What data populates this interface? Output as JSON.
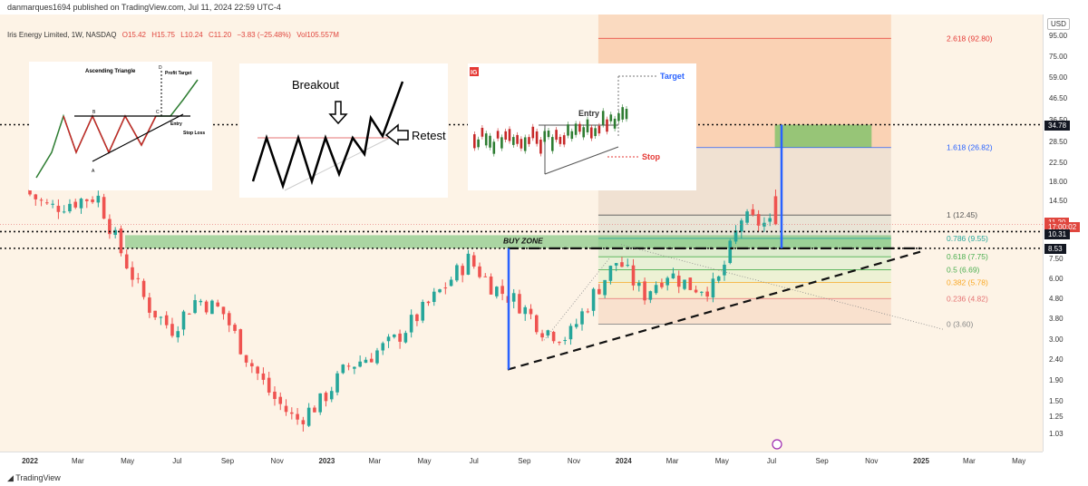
{
  "header": {
    "published": "danmarques1694 published on TradingView.com, Jul 11, 2024 22:59 UTC-4",
    "symbol": "Iris Energy Limited, 1W, NASDAQ",
    "open": "O15.42",
    "high": "H15.75",
    "low": "L10.24",
    "close": "C11.20",
    "change": "−3.83 (−25.48%)",
    "volume": "Vol105.557M"
  },
  "footer": {
    "brand": "TradingView"
  },
  "price_axis": {
    "currency": "USD",
    "ticks": [
      "95.00",
      "75.00",
      "59.00",
      "46.50",
      "36.50",
      "28.50",
      "22.50",
      "18.00",
      "14.50",
      "11.50",
      "7.50",
      "6.00",
      "4.80",
      "3.80",
      "3.00",
      "2.40",
      "1.90",
      "1.50",
      "1.25",
      "1.03"
    ],
    "badges": [
      {
        "text": "34.78",
        "color": "#131722"
      },
      {
        "text": "11.20",
        "color": "#e0463e"
      },
      {
        "text": "17:00:02",
        "color": "#e0463e"
      },
      {
        "text": "10.31",
        "color": "#131722"
      },
      {
        "text": "8.53",
        "color": "#131722"
      }
    ]
  },
  "time_axis": [
    "2022",
    "Mar",
    "May",
    "Jul",
    "Sep",
    "Nov",
    "2023",
    "Mar",
    "May",
    "Jul",
    "Sep",
    "Nov",
    "2024",
    "Mar",
    "May",
    "Jul",
    "Sep",
    "Nov",
    "2025",
    "Mar",
    "May"
  ],
  "annotations": {
    "buy_zone": "BUY ZONE",
    "fib": [
      "2.618 (92.80)",
      "1.618 (26.82)",
      "1 (12.45)",
      "0.786 (9.55)",
      "0.618 (7.75)",
      "0.5 (6.69)",
      "0.382 (5.78)",
      "0.236 (4.82)",
      "0 (3.60)"
    ]
  },
  "insets": {
    "ascending_triangle": {
      "title": "Ascending Triangle",
      "labels": [
        "Profit Target",
        "Entry",
        "Stop Loss",
        "A",
        "B",
        "C",
        "D"
      ]
    },
    "breakout": {
      "breakout": "Breakout",
      "retest": "Retest"
    },
    "ig": {
      "logo": "IG",
      "target": "Target",
      "entry": "Entry",
      "stop": "Stop"
    }
  },
  "colors": {
    "up": "#26a69a",
    "down": "#ef5350",
    "zone": "#4caf50",
    "fib_top": "#f4a582",
    "accent_blue": "#2962ff"
  },
  "chart_data": {
    "type": "candlestick",
    "timeframe": "1W",
    "scale": "log",
    "ylim": [
      1.0,
      110
    ],
    "last": {
      "open": 15.42,
      "high": 15.75,
      "low": 10.24,
      "close": 11.2
    },
    "path": [
      [
        "2022-01",
        16.5
      ],
      [
        "2022-02",
        13.5
      ],
      [
        "2022-03",
        14.5
      ],
      [
        "2022-04",
        15.5
      ],
      [
        "2022-05",
        8.0
      ],
      [
        "2022-06",
        4.5
      ],
      [
        "2022-07",
        3.4
      ],
      [
        "2022-08",
        4.8
      ],
      [
        "2022-09",
        4.2
      ],
      [
        "2022-10",
        2.5
      ],
      [
        "2022-11",
        1.6
      ],
      [
        "2022-12",
        1.2
      ],
      [
        "2023-01",
        1.5
      ],
      [
        "2023-02",
        2.2
      ],
      [
        "2023-03",
        2.5
      ],
      [
        "2023-04",
        3.0
      ],
      [
        "2023-05",
        4.0
      ],
      [
        "2023-06",
        5.5
      ],
      [
        "2023-07",
        7.5
      ],
      [
        "2023-08",
        5.5
      ],
      [
        "2023-09",
        4.6
      ],
      [
        "2023-10",
        3.4
      ],
      [
        "2023-11",
        3.1
      ],
      [
        "2023-12",
        5.0
      ],
      [
        "2024-01",
        7.5
      ],
      [
        "2024-02",
        5.0
      ],
      [
        "2024-03",
        6.5
      ],
      [
        "2024-04",
        5.5
      ],
      [
        "2024-05",
        5.5
      ],
      [
        "2024-06",
        12.0
      ],
      [
        "2024-07",
        11.2
      ]
    ]
  }
}
